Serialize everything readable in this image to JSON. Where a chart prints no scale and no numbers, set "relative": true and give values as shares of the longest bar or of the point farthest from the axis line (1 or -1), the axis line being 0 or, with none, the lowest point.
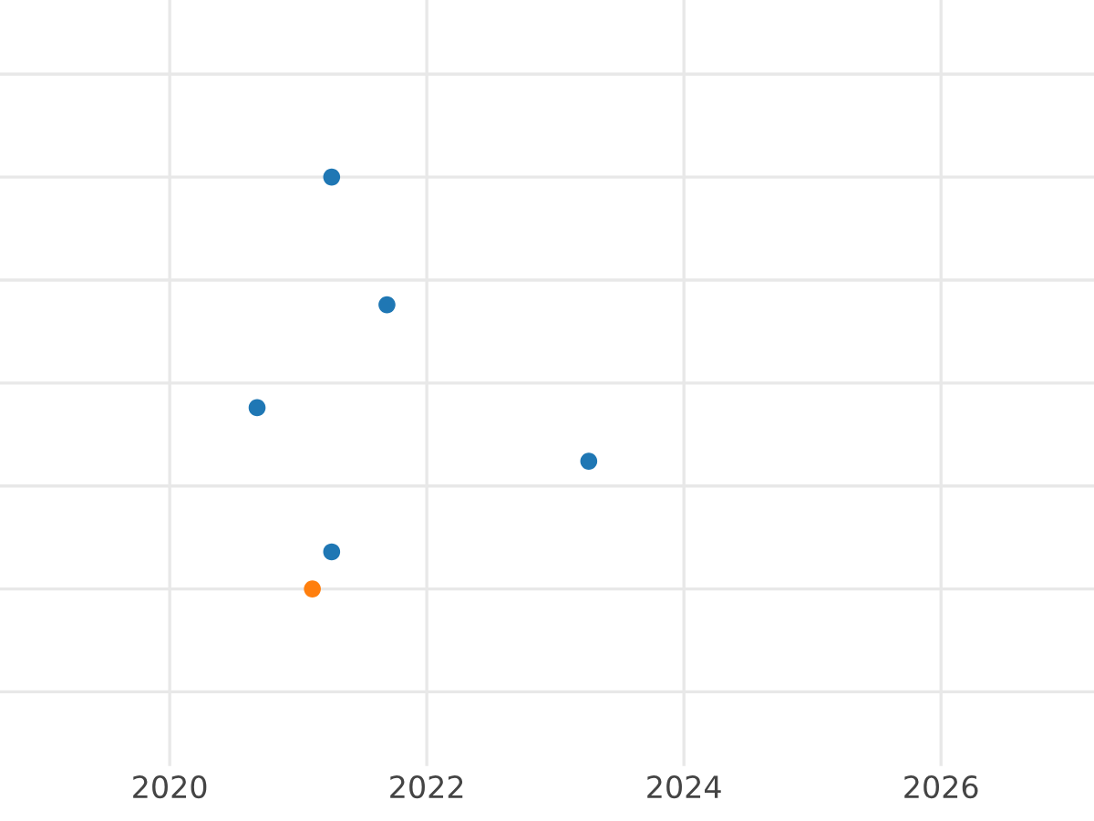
{
  "chart_data": {
    "type": "scatter",
    "relative": true,
    "x": [
      2021.26,
      2021.69,
      2020.68,
      2023.26,
      2021.26,
      2021.11
    ],
    "values": [
      1,
      0.69,
      0.44,
      0.31,
      0.09,
      0
    ],
    "colors": [
      "#1f77b4",
      "#1f77b4",
      "#1f77b4",
      "#1f77b4",
      "#1f77b4",
      "#ff7f0e"
    ],
    "xlim": [
      2018.68,
      2027.19
    ],
    "xticks": [
      2020,
      2022,
      2024,
      2026
    ],
    "grid": true,
    "tick_labels": "x",
    "marker": "circle"
  }
}
